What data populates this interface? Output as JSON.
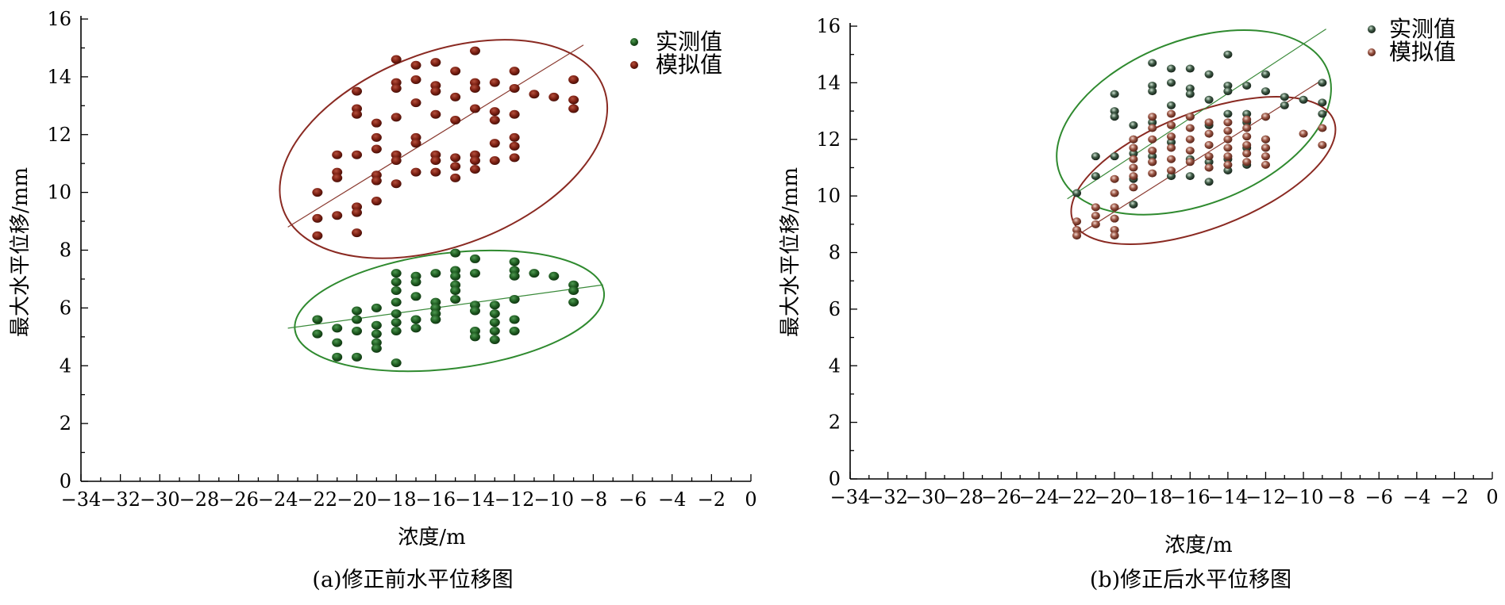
{
  "colors": {
    "measured": "#1e5a20",
    "measured_dark": "#0c2e0e",
    "simulated": "#7a1f12",
    "simulated_dark": "#3e0c06",
    "measured_b": "#1c2a20",
    "simulated_b": "#7a3a2a",
    "ellipse_green": "#2f8a2f",
    "ellipse_red": "#8a2a22",
    "line_green": "#3a8a3a",
    "line_red": "#8a3a30",
    "axis": "#000000"
  },
  "chart_data": [
    {
      "type": "scatter",
      "caption": "(a)修正前水平位移图",
      "xlabel": "浓度/m",
      "ylabel": "最大水平位移/mm",
      "xlim": [
        -34,
        0
      ],
      "ylim": [
        0,
        16
      ],
      "x_ticks": [
        "−34",
        "−32",
        "−30",
        "−28",
        "−26",
        "−24",
        "−22",
        "−20",
        "−18",
        "−16",
        "−14",
        "−12",
        "−10",
        "−8",
        "−6",
        "−4",
        "−2",
        "0"
      ],
      "y_ticks": [
        "0",
        "2",
        "4",
        "6",
        "8",
        "10",
        "12",
        "14",
        "16"
      ],
      "legend": [
        "实测值",
        "模拟值"
      ],
      "legend_position": "top-right",
      "series": [
        {
          "name": "实测值",
          "points": [
            [
              -22,
              5.6
            ],
            [
              -22,
              5.1
            ],
            [
              -21,
              5.3
            ],
            [
              -21,
              4.8
            ],
            [
              -21,
              4.3
            ],
            [
              -20,
              5.9
            ],
            [
              -20,
              5.6
            ],
            [
              -20,
              5.2
            ],
            [
              -20,
              4.3
            ],
            [
              -19,
              6.0
            ],
            [
              -19,
              5.4
            ],
            [
              -19,
              5.1
            ],
            [
              -19,
              4.8
            ],
            [
              -19,
              4.6
            ],
            [
              -18,
              7.2
            ],
            [
              -18,
              6.9
            ],
            [
              -18,
              6.6
            ],
            [
              -18,
              6.2
            ],
            [
              -18,
              5.8
            ],
            [
              -18,
              5.5
            ],
            [
              -18,
              5.2
            ],
            [
              -18,
              4.1
            ],
            [
              -17,
              7.1
            ],
            [
              -17,
              6.9
            ],
            [
              -17,
              6.4
            ],
            [
              -17,
              5.6
            ],
            [
              -17,
              5.3
            ],
            [
              -16,
              7.2
            ],
            [
              -16,
              6.2
            ],
            [
              -16,
              6.0
            ],
            [
              -16,
              5.8
            ],
            [
              -16,
              5.6
            ],
            [
              -15,
              7.9
            ],
            [
              -15,
              7.3
            ],
            [
              -15,
              7.1
            ],
            [
              -15,
              6.8
            ],
            [
              -15,
              6.6
            ],
            [
              -15,
              6.3
            ],
            [
              -14,
              7.7
            ],
            [
              -14,
              7.2
            ],
            [
              -14,
              6.1
            ],
            [
              -14,
              5.9
            ],
            [
              -14,
              5.2
            ],
            [
              -14,
              5.0
            ],
            [
              -13,
              6.1
            ],
            [
              -13,
              5.8
            ],
            [
              -13,
              5.5
            ],
            [
              -13,
              5.2
            ],
            [
              -13,
              4.9
            ],
            [
              -12,
              7.6
            ],
            [
              -12,
              7.3
            ],
            [
              -12,
              7.1
            ],
            [
              -12,
              6.3
            ],
            [
              -12,
              5.6
            ],
            [
              -12,
              5.2
            ],
            [
              -11,
              7.2
            ],
            [
              -10,
              7.1
            ],
            [
              -9,
              6.8
            ],
            [
              -9,
              6.6
            ],
            [
              -9,
              6.2
            ]
          ],
          "trend": [
            [
              -23.5,
              5.3
            ],
            [
              -7.5,
              6.8
            ]
          ],
          "ellipse": {
            "cx": -15.3,
            "cy": 5.9,
            "rx": 7.9,
            "ry": 2.0,
            "rotate": 7
          }
        },
        {
          "name": "模拟值",
          "points": [
            [
              -22,
              10.0
            ],
            [
              -22,
              9.1
            ],
            [
              -22,
              8.5
            ],
            [
              -21,
              11.3
            ],
            [
              -21,
              10.7
            ],
            [
              -21,
              10.5
            ],
            [
              -21,
              9.2
            ],
            [
              -20,
              13.5
            ],
            [
              -20,
              12.9
            ],
            [
              -20,
              12.7
            ],
            [
              -20,
              11.3
            ],
            [
              -20,
              9.5
            ],
            [
              -20,
              9.3
            ],
            [
              -20,
              8.6
            ],
            [
              -19,
              12.4
            ],
            [
              -19,
              11.9
            ],
            [
              -19,
              11.5
            ],
            [
              -19,
              10.6
            ],
            [
              -19,
              10.4
            ],
            [
              -19,
              9.7
            ],
            [
              -18,
              14.6
            ],
            [
              -18,
              13.8
            ],
            [
              -18,
              13.6
            ],
            [
              -18,
              12.6
            ],
            [
              -18,
              11.3
            ],
            [
              -18,
              11.1
            ],
            [
              -18,
              10.3
            ],
            [
              -17,
              14.4
            ],
            [
              -17,
              13.9
            ],
            [
              -17,
              13.1
            ],
            [
              -17,
              11.9
            ],
            [
              -17,
              11.7
            ],
            [
              -17,
              10.7
            ],
            [
              -16,
              14.5
            ],
            [
              -16,
              13.7
            ],
            [
              -16,
              13.5
            ],
            [
              -16,
              12.7
            ],
            [
              -16,
              11.3
            ],
            [
              -16,
              11.1
            ],
            [
              -16,
              10.7
            ],
            [
              -15,
              14.2
            ],
            [
              -15,
              13.3
            ],
            [
              -15,
              12.5
            ],
            [
              -15,
              11.2
            ],
            [
              -15,
              10.9
            ],
            [
              -15,
              10.5
            ],
            [
              -14,
              14.9
            ],
            [
              -14,
              13.8
            ],
            [
              -14,
              13.6
            ],
            [
              -14,
              12.9
            ],
            [
              -14,
              11.3
            ],
            [
              -14,
              11.1
            ],
            [
              -14,
              10.8
            ],
            [
              -13,
              13.8
            ],
            [
              -13,
              12.8
            ],
            [
              -13,
              12.5
            ],
            [
              -13,
              11.7
            ],
            [
              -13,
              11.1
            ],
            [
              -12,
              14.2
            ],
            [
              -12,
              13.6
            ],
            [
              -12,
              12.7
            ],
            [
              -12,
              11.9
            ],
            [
              -12,
              11.6
            ],
            [
              -12,
              11.2
            ],
            [
              -11,
              13.4
            ],
            [
              -10,
              13.3
            ],
            [
              -9,
              13.9
            ],
            [
              -9,
              13.2
            ],
            [
              -9,
              12.9
            ]
          ],
          "trend": [
            [
              -23.5,
              8.8
            ],
            [
              -8.5,
              15.1
            ]
          ],
          "ellipse": {
            "cx": -15.6,
            "cy": 11.5,
            "rx": 8.7,
            "ry": 3.35,
            "rotate": 21
          }
        }
      ]
    },
    {
      "type": "scatter",
      "caption": "(b)修正后水平位移图",
      "xlabel": "浓度/m",
      "ylabel": "最大水平位移/mm",
      "xlim": [
        -34,
        0
      ],
      "ylim": [
        0,
        16
      ],
      "x_ticks": [
        "−34",
        "−32",
        "−30",
        "−28",
        "−26",
        "−24",
        "−22",
        "−20",
        "−18",
        "−16",
        "−14",
        "−12",
        "−10",
        "−8",
        "−6",
        "−4",
        "−2",
        "0"
      ],
      "y_ticks": [
        "0",
        "2",
        "4",
        "6",
        "8",
        "10",
        "12",
        "14",
        "16"
      ],
      "legend": [
        "实测值",
        "模拟值"
      ],
      "legend_position": "top-right",
      "series": [
        {
          "name": "实测值",
          "points": [
            [
              -22,
              10.1
            ],
            [
              -21,
              11.4
            ],
            [
              -21,
              10.7
            ],
            [
              -20,
              13.6
            ],
            [
              -20,
              13.0
            ],
            [
              -20,
              12.8
            ],
            [
              -20,
              11.4
            ],
            [
              -19,
              12.5
            ],
            [
              -19,
              12.0
            ],
            [
              -19,
              11.5
            ],
            [
              -19,
              10.6
            ],
            [
              -19,
              9.7
            ],
            [
              -18,
              14.7
            ],
            [
              -18,
              13.9
            ],
            [
              -18,
              13.7
            ],
            [
              -18,
              12.6
            ],
            [
              -18,
              11.4
            ],
            [
              -18,
              11.2
            ],
            [
              -17,
              14.5
            ],
            [
              -17,
              14.0
            ],
            [
              -17,
              13.2
            ],
            [
              -17,
              11.9
            ],
            [
              -17,
              10.7
            ],
            [
              -16,
              14.5
            ],
            [
              -16,
              13.8
            ],
            [
              -16,
              13.6
            ],
            [
              -16,
              12.8
            ],
            [
              -16,
              11.3
            ],
            [
              -16,
              10.7
            ],
            [
              -15,
              14.3
            ],
            [
              -15,
              13.4
            ],
            [
              -15,
              12.5
            ],
            [
              -15,
              11.2
            ],
            [
              -15,
              10.5
            ],
            [
              -14,
              15.0
            ],
            [
              -14,
              13.9
            ],
            [
              -14,
              13.7
            ],
            [
              -14,
              12.9
            ],
            [
              -14,
              11.3
            ],
            [
              -14,
              10.9
            ],
            [
              -13,
              13.9
            ],
            [
              -13,
              12.9
            ],
            [
              -13,
              12.6
            ],
            [
              -13,
              11.7
            ],
            [
              -13,
              11.1
            ],
            [
              -12,
              14.3
            ],
            [
              -12,
              13.7
            ],
            [
              -12,
              12.8
            ],
            [
              -12,
              12.0
            ],
            [
              -12,
              11.7
            ],
            [
              -11,
              13.5
            ],
            [
              -11,
              13.2
            ],
            [
              -10,
              13.4
            ],
            [
              -9,
              14.0
            ],
            [
              -9,
              13.3
            ],
            [
              -9,
              12.9
            ]
          ],
          "trend": [
            [
              -22.5,
              9.9
            ],
            [
              -8.8,
              15.9
            ]
          ],
          "ellipse": {
            "cx": -15.8,
            "cy": 12.6,
            "rx": 7.6,
            "ry": 2.9,
            "rotate": 21
          }
        },
        {
          "name": "模拟值",
          "points": [
            [
              -22,
              9.1
            ],
            [
              -22,
              8.8
            ],
            [
              -22,
              8.6
            ],
            [
              -21,
              9.6
            ],
            [
              -21,
              9.3
            ],
            [
              -21,
              9.0
            ],
            [
              -20,
              10.6
            ],
            [
              -20,
              10.1
            ],
            [
              -20,
              9.6
            ],
            [
              -20,
              9.2
            ],
            [
              -20,
              8.8
            ],
            [
              -20,
              8.6
            ],
            [
              -19,
              12.0
            ],
            [
              -19,
              11.7
            ],
            [
              -19,
              11.3
            ],
            [
              -19,
              11.0
            ],
            [
              -19,
              10.7
            ],
            [
              -19,
              10.3
            ],
            [
              -18,
              12.8
            ],
            [
              -18,
              12.4
            ],
            [
              -18,
              12.0
            ],
            [
              -18,
              11.6
            ],
            [
              -18,
              11.2
            ],
            [
              -18,
              10.8
            ],
            [
              -17,
              12.9
            ],
            [
              -17,
              12.5
            ],
            [
              -17,
              12.1
            ],
            [
              -17,
              11.7
            ],
            [
              -17,
              11.3
            ],
            [
              -17,
              10.9
            ],
            [
              -16,
              12.8
            ],
            [
              -16,
              12.4
            ],
            [
              -16,
              12.0
            ],
            [
              -16,
              11.6
            ],
            [
              -16,
              11.2
            ],
            [
              -15,
              12.6
            ],
            [
              -15,
              12.2
            ],
            [
              -15,
              11.8
            ],
            [
              -15,
              11.4
            ],
            [
              -15,
              11.0
            ],
            [
              -14,
              12.6
            ],
            [
              -14,
              12.3
            ],
            [
              -14,
              12.0
            ],
            [
              -14,
              11.7
            ],
            [
              -14,
              11.4
            ],
            [
              -14,
              11.1
            ],
            [
              -13,
              12.7
            ],
            [
              -13,
              12.4
            ],
            [
              -13,
              12.1
            ],
            [
              -13,
              11.8
            ],
            [
              -13,
              11.5
            ],
            [
              -13,
              11.2
            ],
            [
              -12,
              12.8
            ],
            [
              -12,
              12.0
            ],
            [
              -12,
              11.7
            ],
            [
              -12,
              11.4
            ],
            [
              -12,
              11.1
            ],
            [
              -10,
              12.2
            ],
            [
              -9,
              12.4
            ],
            [
              -9,
              11.8
            ]
          ],
          "trend": [
            [
              -22,
              8.6
            ],
            [
              -9,
              14.1
            ]
          ],
          "ellipse": {
            "cx": -15.3,
            "cy": 10.9,
            "rx": 7.4,
            "ry": 2.05,
            "rotate": 21
          }
        }
      ]
    }
  ]
}
